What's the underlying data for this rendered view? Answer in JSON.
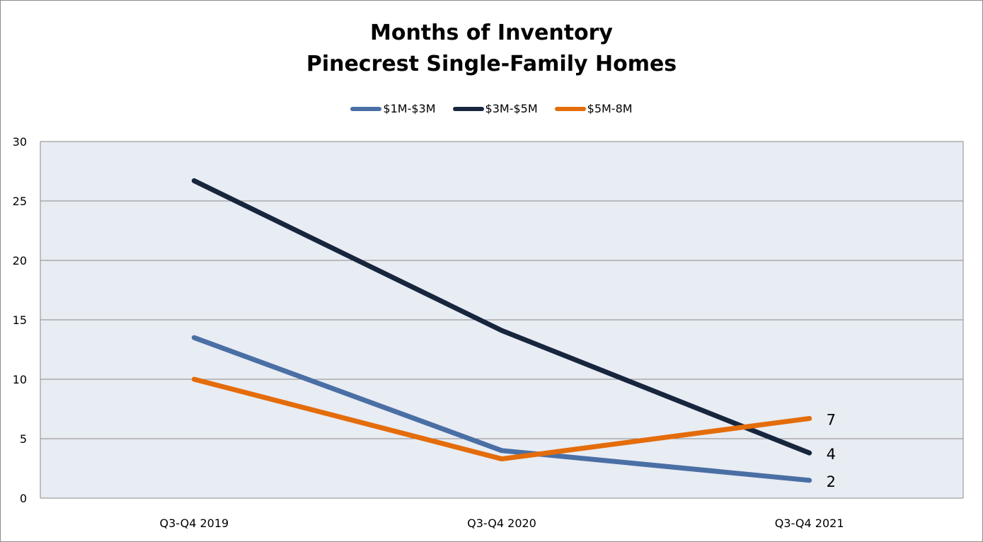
{
  "chart_data": {
    "type": "line",
    "title": "Months of Inventory",
    "subtitle": "Pinecrest Single-Family Homes",
    "xlabel": "",
    "ylabel": "",
    "categories": [
      "Q3-Q4 2019",
      "Q3-Q4 2020",
      "Q3-Q4 2021"
    ],
    "ylim": [
      0,
      30
    ],
    "yticks": [
      0,
      5,
      10,
      15,
      20,
      25,
      30
    ],
    "grid": true,
    "legend_position": "top",
    "series": [
      {
        "name": "$1M-$3M",
        "color": "#4a6fa5",
        "values": [
          13.5,
          4.0,
          1.5
        ],
        "end_label": "2"
      },
      {
        "name": "$3M-$5M",
        "color": "#17263d",
        "values": [
          26.7,
          14.1,
          3.8
        ],
        "end_label": "4"
      },
      {
        "name": "$5M-8M",
        "color": "#e46c0a",
        "values": [
          10.0,
          3.3,
          6.7
        ],
        "end_label": "7"
      }
    ]
  }
}
